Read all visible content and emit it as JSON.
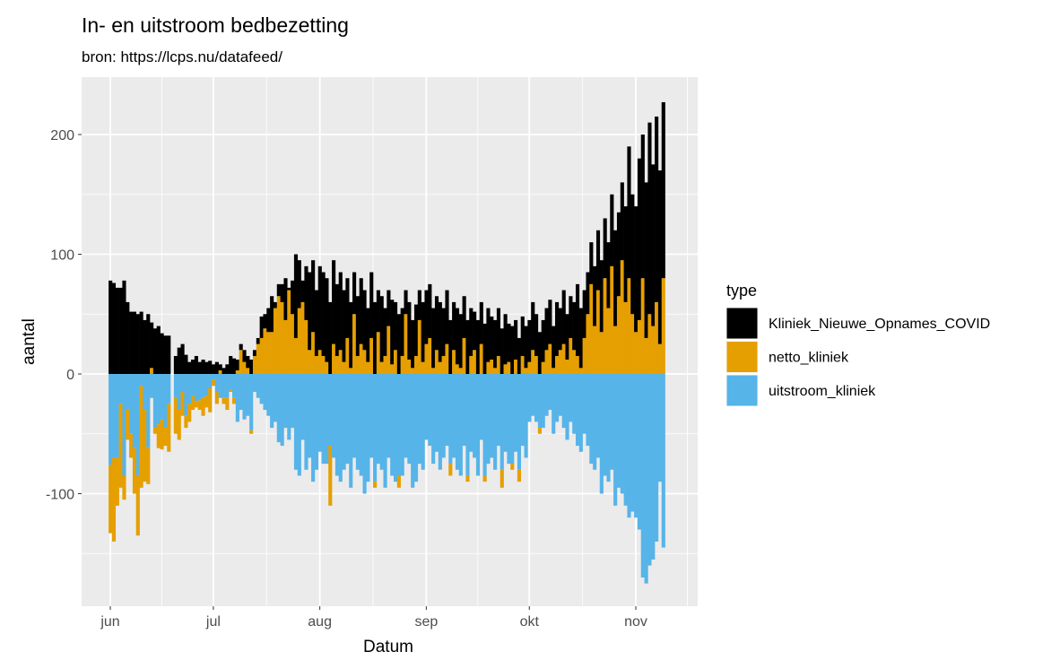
{
  "chart_data": {
    "type": "bar",
    "stacked": true,
    "title": "In- en uitstroom bedbezetting",
    "subtitle": "bron: https://lcps.nu/datafeed/",
    "xlabel": "Datum",
    "ylabel": "aantal",
    "x_start": "2020-06-01",
    "x_ticks": [
      "jun",
      "jul",
      "aug",
      "sep",
      "okt",
      "nov"
    ],
    "x_tick_days": [
      0,
      30,
      61,
      92,
      122,
      153
    ],
    "y_ticks": [
      -100,
      0,
      100,
      200
    ],
    "ylim": [
      -182,
      260
    ],
    "legend": {
      "title": "type",
      "position": "right"
    },
    "series": [
      {
        "name": "Kliniek_Nieuwe_Opnames_COVID",
        "color": "#000000",
        "values": [
          78,
          76,
          72,
          72,
          78,
          60,
          52,
          52,
          50,
          52,
          45,
          50,
          38,
          38,
          40,
          34,
          32,
          32,
          null,
          15,
          22,
          25,
          16,
          10,
          12,
          15,
          10,
          12,
          10,
          11,
          8,
          10,
          5,
          5,
          8,
          15,
          13,
          9,
          5,
          10,
          10,
          12,
          5,
          5,
          18,
          12,
          20,
          30,
          5,
          10,
          15,
          35,
          2,
          28,
          70,
          40,
          18,
          45,
          65,
          60,
          55,
          70,
          70,
          70,
          60,
          70,
          60,
          65,
          60,
          50,
          55,
          35,
          50,
          55,
          50,
          45,
          55,
          60,
          35,
          55,
          40,
          30,
          54,
          40,
          50,
          40,
          20,
          48,
          40,
          43,
          25,
          50,
          45,
          45,
          50,
          45,
          50,
          40,
          45,
          45,
          40,
          47,
          45,
          35,
          45,
          40,
          32,
          45,
          35,
          42,
          45,
          36,
          40,
          40,
          38,
          42,
          32,
          40,
          33,
          30,
          33,
          35,
          35,
          40,
          35,
          35,
          35,
          35,
          37,
          35,
          45,
          35,
          45,
          38,
          35,
          40,
          60,
          50,
          40,
          35,
          35,
          50,
          50,
          60,
          50,
          55,
          60,
          80,
          70,
          65,
          80,
          110,
          100,
          105,
          135,
          120,
          130,
          160,
          135,
          155,
          145,
          147
        ]
      },
      {
        "name": "netto_kliniek",
        "color": "#E69F00",
        "values": [
          -57,
          -70,
          -40,
          -70,
          -20,
          -25,
          -20,
          -38,
          -50,
          -85,
          -60,
          -30,
          5,
          -5,
          -20,
          -25,
          -15,
          -40,
          null,
          -30,
          -25,
          -20,
          -10,
          -15,
          -12,
          -5,
          -8,
          -15,
          -10,
          -20,
          -5,
          -10,
          3,
          -5,
          -10,
          -2,
          -5,
          3,
          20,
          10,
          5,
          -3,
          15,
          25,
          30,
          38,
          35,
          35,
          55,
          65,
          60,
          45,
          70,
          50,
          30,
          55,
          60,
          45,
          20,
          35,
          15,
          20,
          15,
          10,
          -50,
          25,
          15,
          20,
          10,
          30,
          5,
          50,
          15,
          25,
          20,
          10,
          30,
          -5,
          35,
          10,
          15,
          40,
          8,
          20,
          -10,
          15,
          50,
          12,
          5,
          15,
          45,
          10,
          25,
          30,
          5,
          20,
          10,
          15,
          25,
          -10,
          20,
          8,
          5,
          30,
          -5,
          15,
          20,
          0,
          25,
          -5,
          10,
          12,
          5,
          15,
          -15,
          8,
          10,
          -5,
          12,
          -10,
          15,
          5,
          10,
          20,
          15,
          -5,
          10,
          20,
          25,
          5,
          15,
          20,
          25,
          12,
          30,
          20,
          15,
          5,
          30,
          50,
          75,
          40,
          70,
          35,
          80,
          55,
          90,
          40,
          65,
          95,
          60,
          80,
          50,
          35,
          45,
          80,
          30,
          50,
          40,
          60,
          25,
          80
        ]
      },
      {
        "name": "uitstroom_kliniek",
        "color": "#56B4E9",
        "values": [
          -76,
          -70,
          -70,
          -25,
          -85,
          -30,
          -50,
          -62,
          -85,
          -10,
          -30,
          -62,
          -20,
          -45,
          -42,
          -38,
          -45,
          -25,
          null,
          -20,
          -30,
          -15,
          -35,
          -25,
          -18,
          -23,
          -22,
          -20,
          -18,
          -12,
          -5,
          -15,
          -20,
          -20,
          -20,
          -13,
          -20,
          -40,
          -30,
          -38,
          -35,
          -47,
          -15,
          -20,
          -25,
          -30,
          -35,
          -45,
          -40,
          -57,
          -60,
          -45,
          -55,
          -45,
          -80,
          -85,
          -55,
          -80,
          -70,
          -90,
          -80,
          -65,
          -75,
          -75,
          -60,
          -70,
          -85,
          -90,
          -80,
          -75,
          -95,
          -70,
          -80,
          -85,
          -100,
          -90,
          -70,
          -90,
          -75,
          -80,
          -95,
          -70,
          -85,
          -90,
          -85,
          -85,
          -70,
          -75,
          -95,
          -90,
          -75,
          -80,
          -55,
          -60,
          -75,
          -65,
          -80,
          -70,
          -60,
          -75,
          -70,
          -80,
          -85,
          -60,
          -85,
          -65,
          -70,
          -85,
          -55,
          -85,
          -75,
          -70,
          -80,
          -60,
          -80,
          -65,
          -75,
          -75,
          -65,
          -80,
          -60,
          -70,
          -40,
          -35,
          -40,
          -45,
          -45,
          -35,
          -30,
          -50,
          -40,
          -35,
          -45,
          -55,
          -40,
          -50,
          -60,
          -65,
          -50,
          -60,
          -75,
          -80,
          -70,
          -100,
          -85,
          -90,
          -80,
          -110,
          -95,
          -100,
          -110,
          -120,
          -115,
          -120,
          -130,
          -170,
          -175,
          -160,
          -155,
          -140,
          -90,
          -145
        ]
      }
    ]
  }
}
